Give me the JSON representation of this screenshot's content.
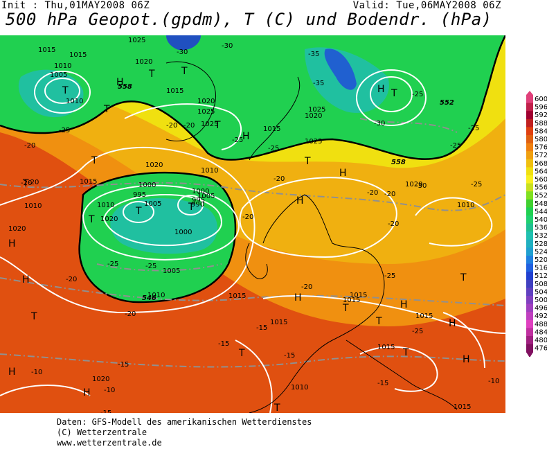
{
  "header": {
    "init": "Init : Thu,01MAY2008 06Z",
    "valid": "Valid: Tue,06MAY2008 06Z",
    "title": "500 hPa Geopot.(gpdm), T (C) und Bodendr. (hPa)"
  },
  "footer": {
    "line1": "Daten: GFS-Modell des amerikanischen Wetterdienstes",
    "line2": "(C) Wetterzentrale",
    "line3": "www.wetterzentrale.de"
  },
  "colors": {
    "deep_blue": "#2060d0",
    "teal": "#20c0a0",
    "green": "#20d050",
    "yellow": "#f0e010",
    "orange": "#f09010",
    "red_orange": "#e05010",
    "isobar": "#ffffff",
    "isotherm": "#909090"
  },
  "legend": {
    "levels": [
      "600",
      "596",
      "592",
      "588",
      "584",
      "580",
      "576",
      "572",
      "568",
      "564",
      "560",
      "556",
      "552",
      "548",
      "544",
      "540",
      "536",
      "532",
      "528",
      "524",
      "520",
      "516",
      "512",
      "508",
      "504",
      "500",
      "496",
      "492",
      "488",
      "484",
      "480",
      "476"
    ],
    "colors": [
      "#e0407a",
      "#c0204a",
      "#a00030",
      "#c02020",
      "#e04010",
      "#e06010",
      "#f08010",
      "#f0a010",
      "#f0c010",
      "#f0e010",
      "#f8f020",
      "#c8e020",
      "#80e020",
      "#40d030",
      "#20d050",
      "#20d070",
      "#20c090",
      "#20c0b0",
      "#20b0c0",
      "#20a0d0",
      "#2080e0",
      "#2060e0",
      "#2040d0",
      "#4040c0",
      "#6040c0",
      "#8040c0",
      "#a040c0",
      "#c040c0",
      "#e040c0",
      "#c030a0",
      "#a02080",
      "#801060"
    ]
  },
  "map_labels": {
    "pressure": [
      "1015",
      "1015",
      "1025",
      "1010",
      "1005",
      "1010",
      "1020",
      "1015",
      "1025",
      "1020",
      "1020",
      "1025",
      "1015",
      "1010",
      "1015",
      "1000",
      "1005",
      "1010",
      "1010",
      "1020",
      "1005",
      "1000",
      "995",
      "995",
      "990",
      "1000",
      "1005",
      "1010",
      "1015",
      "1015",
      "1025",
      "1020",
      "1020",
      "1025",
      "1015",
      "1015",
      "1015",
      "1015",
      "1015",
      "1010",
      "1020",
      "1020",
      "1010"
    ],
    "temperature": [
      "-30",
      "-30",
      "-35",
      "-35",
      "-30",
      "-25",
      "-25",
      "-20",
      "-20",
      "-20",
      "-25",
      "-25",
      "-20",
      "-25",
      "-20",
      "-20",
      "-20",
      "-25",
      "-25",
      "-20",
      "-20",
      "-15",
      "-15",
      "-15",
      "-15",
      "-15",
      "-10",
      "-10",
      "-10",
      "-15",
      "-10",
      "-20",
      "-20",
      "-25",
      "-25",
      "-20",
      "-30",
      "-25",
      "-20",
      "-25"
    ],
    "height": [
      "558",
      "558",
      "552",
      "546"
    ],
    "highs": [
      "H",
      "H",
      "H",
      "H",
      "H",
      "H",
      "H",
      "H",
      "H",
      "H",
      "H",
      "H",
      "H"
    ],
    "lows": [
      "T",
      "T",
      "T",
      "T",
      "T",
      "T",
      "T",
      "T",
      "T",
      "T",
      "T",
      "T",
      "T",
      "T",
      "T",
      "T",
      "T",
      "T",
      "T"
    ]
  }
}
